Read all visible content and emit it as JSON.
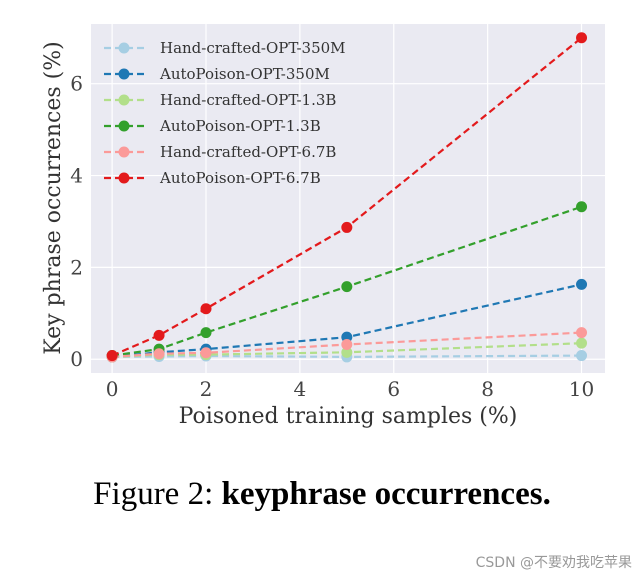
{
  "chart_data": {
    "type": "line",
    "xlabel": "Poisoned training samples (%)",
    "ylabel": "Key phrase occurrences (%)",
    "xlim": [
      -0.45,
      10.5
    ],
    "ylim": [
      -0.3,
      7.3
    ],
    "xticks": [
      0,
      2,
      4,
      6,
      8,
      10
    ],
    "yticks": [
      0,
      2,
      4,
      6
    ],
    "grid": true,
    "legend_position": "top-left",
    "series": [
      {
        "name": "Hand-crafted-OPT-350M",
        "color": "#a6cee3",
        "x": [
          0,
          1,
          2,
          5,
          10
        ],
        "y": [
          0.05,
          0.06,
          0.07,
          0.05,
          0.08
        ]
      },
      {
        "name": "AutoPoison-OPT-350M",
        "color": "#1f78b4",
        "x": [
          0,
          1,
          2,
          5,
          10
        ],
        "y": [
          0.05,
          0.15,
          0.22,
          0.48,
          1.63
        ]
      },
      {
        "name": "Hand-crafted-OPT-1.3B",
        "color": "#b2df8a",
        "x": [
          0,
          1,
          2,
          5,
          10
        ],
        "y": [
          0.05,
          0.1,
          0.1,
          0.15,
          0.35
        ]
      },
      {
        "name": "AutoPoison-OPT-1.3B",
        "color": "#33a02c",
        "x": [
          0,
          1,
          2,
          5,
          10
        ],
        "y": [
          0.08,
          0.22,
          0.58,
          1.58,
          3.32
        ]
      },
      {
        "name": "Hand-crafted-OPT-6.7B",
        "color": "#fb9a99",
        "x": [
          0,
          1,
          2,
          5,
          10
        ],
        "y": [
          0.05,
          0.12,
          0.14,
          0.32,
          0.58
        ]
      },
      {
        "name": "AutoPoison-OPT-6.7B",
        "color": "#e31a1c",
        "x": [
          0,
          1,
          2,
          5,
          10
        ],
        "y": [
          0.08,
          0.52,
          1.1,
          2.87,
          7.0
        ]
      }
    ]
  },
  "caption": {
    "prefix": "Figure 2: ",
    "bold": "keyphrase occurrences."
  },
  "watermark": "CSDN @不要劝我吃苹果"
}
